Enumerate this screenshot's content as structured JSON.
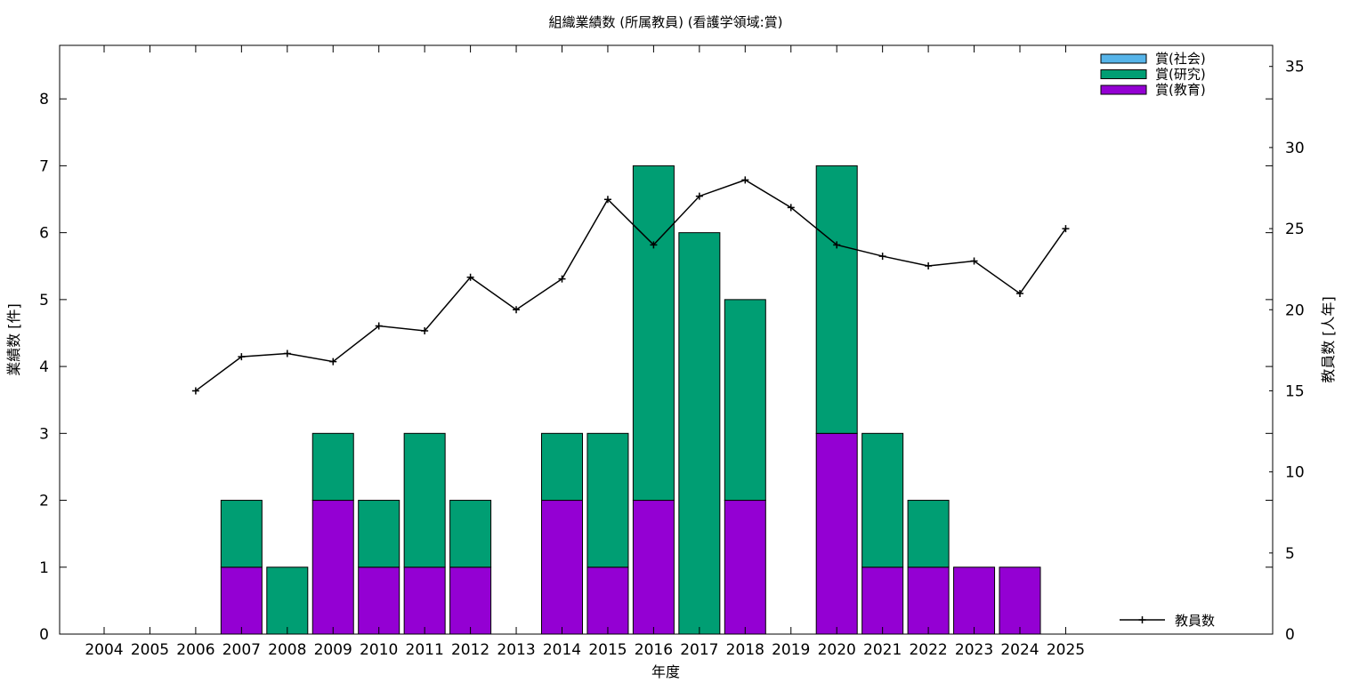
{
  "chart_data": {
    "type": "bar",
    "title": "組織業績数 (所属教員) (看護学領域:賞)",
    "xlabel": "年度",
    "ylabel": "業績数 [件]",
    "y2label": "教員数 [人年]",
    "categories": [
      "2004",
      "2005",
      "2006",
      "2007",
      "2008",
      "2009",
      "2010",
      "2011",
      "2012",
      "2013",
      "2014",
      "2015",
      "2016",
      "2017",
      "2018",
      "2019",
      "2020",
      "2021",
      "2022",
      "2023",
      "2024",
      "2025"
    ],
    "ylim": [
      0,
      8.8
    ],
    "y2lim": [
      0,
      36.3
    ],
    "yticks": [
      0,
      1,
      2,
      3,
      4,
      5,
      6,
      7,
      8
    ],
    "y2ticks": [
      0,
      5,
      10,
      15,
      20,
      25,
      30,
      35
    ],
    "stacked": true,
    "series": [
      {
        "name": "賞(教育)",
        "color": "#9400d3",
        "values": [
          0,
          0,
          0,
          1,
          0,
          2,
          1,
          1,
          1,
          0,
          2,
          1,
          2,
          0,
          2,
          0,
          3,
          1,
          1,
          1,
          1,
          0
        ]
      },
      {
        "name": "賞(研究)",
        "color": "#009e73",
        "values": [
          0,
          0,
          0,
          1,
          1,
          1,
          1,
          2,
          1,
          0,
          1,
          2,
          5,
          6,
          3,
          0,
          4,
          2,
          1,
          0,
          0,
          0
        ]
      },
      {
        "name": "賞(社会)",
        "color": "#56b4e9",
        "values": [
          0,
          0,
          0,
          0,
          0,
          0,
          0,
          0,
          0,
          0,
          0,
          0,
          0,
          0,
          0,
          0,
          0,
          0,
          0,
          0,
          0,
          0
        ]
      }
    ],
    "line_series": {
      "name": "教員数",
      "axis": "y2",
      "color": "#000000",
      "x": [
        "2006",
        "2007",
        "2008",
        "2009",
        "2010",
        "2011",
        "2012",
        "2013",
        "2014",
        "2015",
        "2016",
        "2017",
        "2018",
        "2019",
        "2020",
        "2021",
        "2022",
        "2023",
        "2024",
        "2025"
      ],
      "values": [
        15.0,
        17.1,
        17.3,
        16.8,
        19.0,
        18.7,
        22.0,
        20.0,
        21.9,
        26.8,
        24.0,
        27.0,
        28.0,
        26.3,
        24.0,
        23.3,
        22.7,
        23.0,
        21.0,
        25.0
      ]
    },
    "legend": [
      "賞(社会)",
      "賞(研究)",
      "賞(教育)"
    ],
    "legend_position": "top-right",
    "line_legend_position": "bottom-right",
    "grid": false
  }
}
